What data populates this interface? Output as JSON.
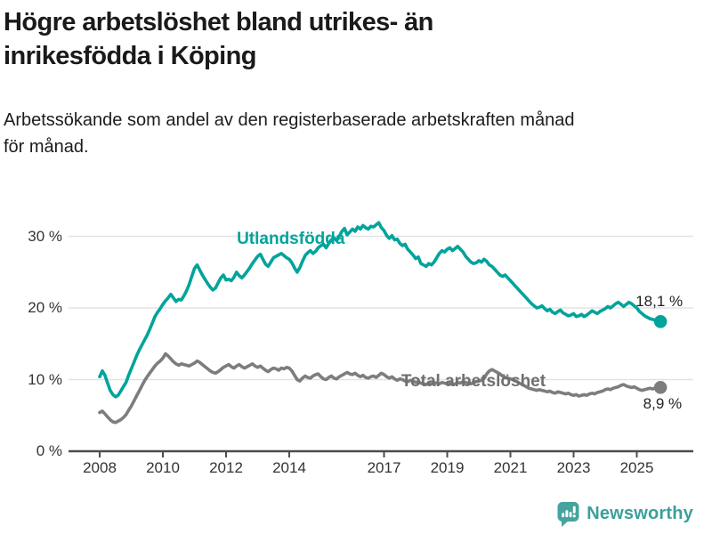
{
  "header": {
    "title_lines": [
      "Högre arbetslöshet bland utrikes- än",
      "inrikesfödda i Köping"
    ],
    "subtitle_lines": [
      "Arbetssökande som andel av den registerbaserade arbetskraften månad",
      "för månad."
    ]
  },
  "chart_data": {
    "type": "line",
    "x_unit": "month",
    "x_start": "2008-01",
    "x_end": "2025-10",
    "x_tick_years": [
      2008,
      2010,
      2012,
      2014,
      2017,
      2019,
      2021,
      2023,
      2025
    ],
    "y_ticks": [
      0,
      10,
      20,
      30
    ],
    "y_tick_suffix": " %",
    "ylim": [
      0,
      33.5
    ],
    "grid": "horizontal",
    "legend_position": "inline-labels",
    "colors": {
      "axis": "#4d4d4d",
      "gridline": "#e3e3e3",
      "annotation_text": "#222222"
    },
    "series": [
      {
        "name": "Utlandsfödda",
        "color": "#00a49b",
        "label_color": "#00a49b",
        "end_label": "18,1 %",
        "end_value": 18.1,
        "label_at": {
          "year": 2014.05,
          "value": 29.6
        },
        "values": [
          10.4,
          11.2,
          10.6,
          9.5,
          8.5,
          7.9,
          7.6,
          7.8,
          8.4,
          9.0,
          9.6,
          10.6,
          11.5,
          12.4,
          13.3,
          14.1,
          14.8,
          15.5,
          16.2,
          17.0,
          17.9,
          18.8,
          19.4,
          19.9,
          20.5,
          21.0,
          21.4,
          21.9,
          21.4,
          20.9,
          21.2,
          21.1,
          21.7,
          22.4,
          23.3,
          24.4,
          25.5,
          26.0,
          25.3,
          24.6,
          24.0,
          23.4,
          22.9,
          22.5,
          22.8,
          23.5,
          24.2,
          24.6,
          23.9,
          24.0,
          23.8,
          24.3,
          25.0,
          24.5,
          24.2,
          24.6,
          25.1,
          25.6,
          26.2,
          26.7,
          27.2,
          27.5,
          26.8,
          26.1,
          25.8,
          26.4,
          27.0,
          27.2,
          27.4,
          27.6,
          27.3,
          27.0,
          26.8,
          26.3,
          25.6,
          25.0,
          25.6,
          26.5,
          27.3,
          27.7,
          28.0,
          27.6,
          27.9,
          28.4,
          28.7,
          28.9,
          28.4,
          29.0,
          29.5,
          29.8,
          29.4,
          30.0,
          30.7,
          31.1,
          30.2,
          30.6,
          31.0,
          30.7,
          31.3,
          31.0,
          31.5,
          31.2,
          31.0,
          31.4,
          31.3,
          31.6,
          31.9,
          31.2,
          30.8,
          30.1,
          29.7,
          30.1,
          29.5,
          29.6,
          29.0,
          28.7,
          28.9,
          28.2,
          27.8,
          27.4,
          26.9,
          27.1,
          26.2,
          26.0,
          25.8,
          26.2,
          26.0,
          26.4,
          27.0,
          27.6,
          28.0,
          27.8,
          28.2,
          28.4,
          28.0,
          28.3,
          28.6,
          28.2,
          27.8,
          27.2,
          26.8,
          26.4,
          26.2,
          26.3,
          26.6,
          26.4,
          26.8,
          26.5,
          26.0,
          25.8,
          25.4,
          25.0,
          24.6,
          24.4,
          24.6,
          24.2,
          23.8,
          23.4,
          23.0,
          22.6,
          22.2,
          21.8,
          21.4,
          21.0,
          20.6,
          20.3,
          20.0,
          20.1,
          20.3,
          19.9,
          19.6,
          19.8,
          19.4,
          19.2,
          19.5,
          19.7,
          19.3,
          19.1,
          18.9,
          19.0,
          19.2,
          18.8,
          18.9,
          19.1,
          18.8,
          19.0,
          19.3,
          19.6,
          19.4,
          19.2,
          19.5,
          19.7,
          19.9,
          20.2,
          20.0,
          20.3,
          20.6,
          20.8,
          20.5,
          20.2,
          20.5,
          20.8,
          20.6,
          20.3,
          20.0,
          19.5,
          19.2,
          18.9,
          18.7,
          18.5,
          18.4,
          18.3,
          18.2,
          18.1
        ]
      },
      {
        "name": "Total arbetslöshet",
        "color": "#7d7d7d",
        "label_color": "#6f6f6f",
        "end_label": "8,9 %",
        "end_value": 8.9,
        "label_at": {
          "year": 2019.83,
          "value": 9.7
        },
        "values": [
          5.4,
          5.6,
          5.2,
          4.8,
          4.4,
          4.1,
          4.0,
          4.2,
          4.4,
          4.7,
          5.1,
          5.7,
          6.3,
          7.0,
          7.7,
          8.4,
          9.1,
          9.8,
          10.4,
          10.9,
          11.4,
          11.9,
          12.3,
          12.6,
          13.0,
          13.6,
          13.3,
          12.9,
          12.5,
          12.2,
          12.0,
          12.2,
          12.1,
          12.0,
          11.9,
          12.1,
          12.3,
          12.6,
          12.4,
          12.1,
          11.8,
          11.5,
          11.2,
          11.0,
          10.9,
          11.1,
          11.4,
          11.7,
          11.9,
          12.1,
          11.8,
          11.6,
          11.9,
          12.1,
          11.8,
          11.6,
          11.8,
          12.0,
          12.2,
          11.9,
          11.7,
          11.9,
          11.6,
          11.3,
          11.1,
          11.4,
          11.6,
          11.5,
          11.3,
          11.6,
          11.5,
          11.7,
          11.6,
          11.2,
          10.6,
          10.0,
          9.8,
          10.2,
          10.5,
          10.3,
          10.2,
          10.5,
          10.7,
          10.8,
          10.4,
          10.1,
          10.0,
          10.3,
          10.5,
          10.2,
          10.1,
          10.4,
          10.6,
          10.8,
          11.0,
          10.8,
          10.7,
          10.9,
          10.6,
          10.4,
          10.6,
          10.3,
          10.2,
          10.4,
          10.5,
          10.3,
          10.6,
          10.9,
          10.7,
          10.4,
          10.2,
          10.4,
          10.1,
          9.9,
          10.1,
          10.0,
          9.8,
          9.7,
          9.9,
          9.8,
          9.6,
          9.7,
          9.5,
          9.4,
          9.3,
          9.5,
          9.4,
          9.6,
          9.5,
          9.4,
          9.6,
          9.5,
          9.4,
          9.5,
          9.3,
          9.4,
          9.6,
          9.5,
          9.7,
          9.6,
          9.5,
          9.4,
          9.6,
          9.7,
          9.8,
          9.9,
          10.2,
          10.8,
          11.2,
          11.4,
          11.2,
          11.0,
          10.8,
          10.5,
          10.3,
          10.2,
          10.1,
          10.0,
          9.8,
          9.6,
          9.4,
          9.2,
          9.0,
          8.8,
          8.7,
          8.6,
          8.5,
          8.6,
          8.5,
          8.4,
          8.3,
          8.4,
          8.2,
          8.1,
          8.3,
          8.2,
          8.1,
          8.0,
          8.1,
          7.9,
          7.8,
          7.9,
          7.7,
          7.8,
          7.9,
          7.8,
          8.0,
          8.1,
          8.0,
          8.2,
          8.3,
          8.4,
          8.6,
          8.7,
          8.6,
          8.8,
          8.9,
          9.0,
          9.2,
          9.3,
          9.1,
          9.0,
          8.9,
          9.0,
          8.8,
          8.6,
          8.5,
          8.6,
          8.7,
          8.8,
          8.7,
          8.8,
          8.9,
          8.9
        ]
      }
    ]
  },
  "footer": {
    "brand": "Newsworthy",
    "logo_icon": "bar-chart-speech-bubble-icon"
  }
}
